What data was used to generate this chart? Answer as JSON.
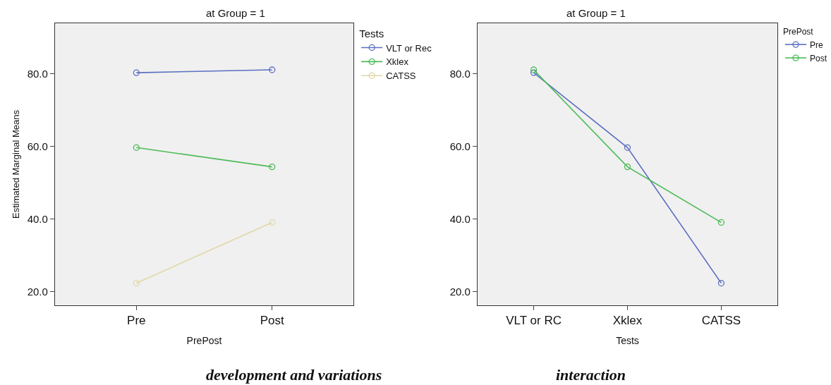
{
  "chart_data": [
    {
      "type": "line",
      "title": "at Group = 1",
      "xlabel": "PrePost",
      "ylabel": "Estimated Marginal Means",
      "legend_title": "Tests",
      "categories": [
        "Pre",
        "Post"
      ],
      "series": [
        {
          "name": "VLT or Rec",
          "color": "#5a6fc0",
          "values": [
            80.3,
            81.1
          ]
        },
        {
          "name": "Xklex",
          "color": "#4cbb57",
          "values": [
            59.7,
            54.4
          ]
        },
        {
          "name": "CATSS",
          "color": "#e0d8a8",
          "values": [
            22.4,
            39.1
          ]
        }
      ],
      "ylim": [
        16.3,
        93.9
      ],
      "yticks": [
        {
          "value": 20,
          "label": "20.0"
        },
        {
          "value": 40,
          "label": "40.0"
        },
        {
          "value": 60,
          "label": "60.0"
        },
        {
          "value": 80,
          "label": "80.0"
        }
      ],
      "grid": false,
      "legend": "top right",
      "marker": "circle",
      "line_style": "solid",
      "annotations": [
        "development and variations"
      ]
    },
    {
      "type": "line",
      "title": "at Group = 1",
      "xlabel": "Tests",
      "legend_title": "PrePost",
      "categories": [
        "VLT or RC",
        "Xklex",
        "CATSS"
      ],
      "series": [
        {
          "name": "Pre",
          "color": "#5a6fc0",
          "values": [
            80.3,
            59.7,
            22.4
          ]
        },
        {
          "name": "Post",
          "color": "#4cbb57",
          "values": [
            81.1,
            54.4,
            39.1
          ]
        }
      ],
      "ylim": [
        16.3,
        93.9
      ],
      "yticks": [
        {
          "value": 20,
          "label": "20.0"
        },
        {
          "value": 40,
          "label": "40.0"
        },
        {
          "value": 60,
          "label": "60.0"
        },
        {
          "value": 80,
          "label": "80.0"
        }
      ],
      "grid": false,
      "legend": "top right",
      "marker": "circle",
      "line_style": "solid",
      "annotations": [
        "interaction"
      ]
    }
  ]
}
